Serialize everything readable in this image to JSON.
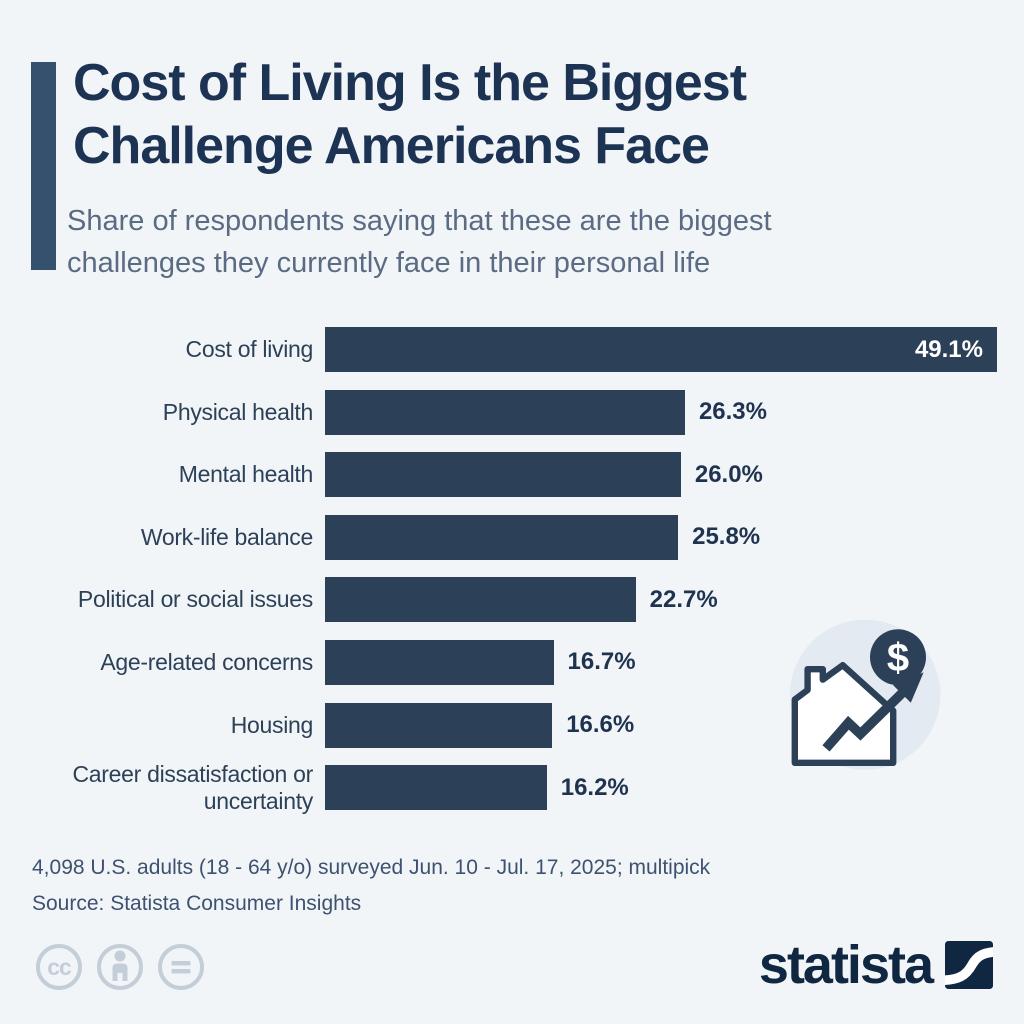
{
  "header": {
    "title_lines": [
      "Cost of Living Is the Biggest",
      "Challenge Americans Face"
    ],
    "subtitle_lines": [
      "Share of respondents saying that these are the biggest",
      "challenges they currently face in their personal life"
    ]
  },
  "chart_data": {
    "type": "bar",
    "orientation": "horizontal",
    "title": "Cost of Living Is the Biggest Challenge Americans Face",
    "categories": [
      "Cost of living",
      "Physical health",
      "Mental health",
      "Work-life balance",
      "Political or social issues",
      "Age-related concerns",
      "Housing",
      "Career dissatisfaction or uncertainty"
    ],
    "values": [
      49.1,
      26.3,
      26.0,
      25.8,
      22.7,
      16.7,
      16.6,
      16.2
    ],
    "value_labels": [
      "49.1%",
      "26.3%",
      "26.0%",
      "25.8%",
      "22.7%",
      "16.7%",
      "16.6%",
      "16.2%"
    ],
    "unit": "%",
    "xlim": [
      0,
      49.1
    ],
    "inside_label_index": 0,
    "bar_color": "#2c4158",
    "grid": false,
    "legend": false,
    "xlabel": "",
    "ylabel": ""
  },
  "icon": {
    "name": "house-cost-rising-icon",
    "dollar_symbol": "$"
  },
  "footer": {
    "note": "4,098 U.S. adults (18 - 64 y/o) surveyed Jun. 10 - Jul. 17, 2025; multipick",
    "source": "Source: Statista Consumer Insights"
  },
  "branding": {
    "logo_text": "statista",
    "cc_text": "cc",
    "license_icons": [
      "cc-icon",
      "attribution-person-icon",
      "no-derivatives-equals-icon"
    ]
  },
  "colors": {
    "background": "#f2f5f8",
    "title": "#1c3354",
    "accent_bar": "#35516d",
    "subtitle": "#5a6b83",
    "bar": "#2c4158",
    "value_label": "#1f3350",
    "inside_value_label": "#ffffff",
    "footer": "#3d5270",
    "license_gray": "#c4ced8",
    "logo_navy": "#0f2741",
    "icon_circle_bg": "#e3eaf2"
  }
}
